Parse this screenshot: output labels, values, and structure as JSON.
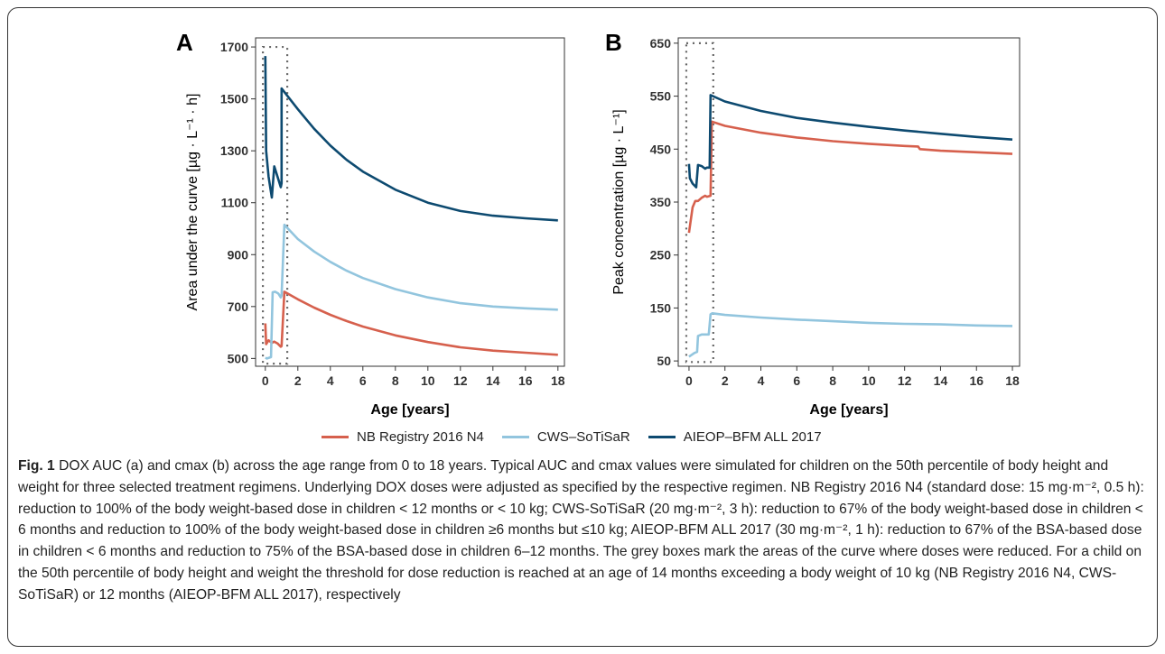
{
  "chart_data": [
    {
      "type": "line",
      "panel_label": "A",
      "xlabel": "Age [years]",
      "ylabel": "Area under the curve [µg · L⁻¹ · h]",
      "xlim": [
        -0.6,
        18.4
      ],
      "ylim": [
        470,
        1735
      ],
      "xticks": [
        0,
        2,
        4,
        6,
        8,
        10,
        12,
        14,
        16,
        18
      ],
      "yticks": [
        500,
        700,
        900,
        1100,
        1300,
        1500,
        1700
      ],
      "highlight_box": {
        "x": [
          -0.15,
          1.35
        ],
        "y": [
          480,
          1700
        ]
      },
      "series": [
        {
          "name": "NB Registry 2016 N4",
          "color": "#d6604d",
          "points": [
            [
              0,
              635
            ],
            [
              0.05,
              555
            ],
            [
              0.2,
              570
            ],
            [
              0.4,
              560
            ],
            [
              0.55,
              565
            ],
            [
              0.75,
              558
            ],
            [
              0.95,
              545
            ],
            [
              1.0,
              548
            ],
            [
              1.17,
              757
            ],
            [
              2,
              728
            ],
            [
              3,
              696
            ],
            [
              4,
              668
            ],
            [
              5,
              644
            ],
            [
              6,
              623
            ],
            [
              8,
              589
            ],
            [
              10,
              563
            ],
            [
              12,
              543
            ],
            [
              14,
              530
            ],
            [
              16,
              522
            ],
            [
              18,
              514
            ]
          ]
        },
        {
          "name": "CWS–SoTiSaR",
          "color": "#92c5de",
          "points": [
            [
              0,
              503
            ],
            [
              0.1,
              500
            ],
            [
              0.35,
              505
            ],
            [
              0.45,
              755
            ],
            [
              0.6,
              757
            ],
            [
              0.8,
              750
            ],
            [
              0.95,
              735
            ],
            [
              1.0,
              742
            ],
            [
              1.17,
              1015
            ],
            [
              2,
              960
            ],
            [
              3,
              912
            ],
            [
              4,
              872
            ],
            [
              5,
              838
            ],
            [
              6,
              810
            ],
            [
              8,
              767
            ],
            [
              10,
              735
            ],
            [
              12,
              713
            ],
            [
              14,
              700
            ],
            [
              16,
              693
            ],
            [
              18,
              688
            ]
          ]
        },
        {
          "name": "AIEOP–BFM ALL 2017",
          "color": "#0d4a70",
          "points": [
            [
              0,
              1665
            ],
            [
              0.05,
              1300
            ],
            [
              0.2,
              1200
            ],
            [
              0.4,
              1120
            ],
            [
              0.55,
              1240
            ],
            [
              0.75,
              1200
            ],
            [
              0.95,
              1160
            ],
            [
              1.0,
              1175
            ],
            [
              1.0,
              1540
            ],
            [
              1.5,
              1500
            ],
            [
              2,
              1460
            ],
            [
              3,
              1385
            ],
            [
              4,
              1320
            ],
            [
              5,
              1265
            ],
            [
              6,
              1220
            ],
            [
              8,
              1150
            ],
            [
              10,
              1100
            ],
            [
              12,
              1068
            ],
            [
              14,
              1050
            ],
            [
              16,
              1040
            ],
            [
              18,
              1032
            ]
          ]
        }
      ]
    },
    {
      "type": "line",
      "panel_label": "B",
      "xlabel": "Age [years]",
      "ylabel": "Peak concentration [µg · L⁻¹]",
      "xlim": [
        -0.6,
        18.4
      ],
      "ylim": [
        40,
        660
      ],
      "xticks": [
        0,
        2,
        4,
        6,
        8,
        10,
        12,
        14,
        16,
        18
      ],
      "yticks": [
        50,
        150,
        250,
        350,
        450,
        550,
        650
      ],
      "highlight_box": {
        "x": [
          -0.15,
          1.35
        ],
        "y": [
          48,
          650
        ]
      },
      "series": [
        {
          "name": "NB Registry 2016 N4",
          "color": "#d6604d",
          "points": [
            [
              0,
              292
            ],
            [
              0.2,
              340
            ],
            [
              0.35,
              352
            ],
            [
              0.5,
              352
            ],
            [
              0.7,
              358
            ],
            [
              0.9,
              362
            ],
            [
              1.0,
              360
            ],
            [
              1.2,
              362
            ],
            [
              1.27,
              502
            ],
            [
              2,
              494
            ],
            [
              4,
              481
            ],
            [
              6,
              472
            ],
            [
              8,
              465
            ],
            [
              10,
              460
            ],
            [
              12,
              456
            ],
            [
              12.75,
              455
            ],
            [
              12.85,
              450
            ],
            [
              14,
              447
            ],
            [
              16,
              444
            ],
            [
              18,
              441
            ]
          ]
        },
        {
          "name": "CWS–SoTiSaR",
          "color": "#92c5de",
          "points": [
            [
              0,
              58
            ],
            [
              0.3,
              65
            ],
            [
              0.45,
              67
            ],
            [
              0.5,
              97
            ],
            [
              0.7,
              100
            ],
            [
              1.0,
              100
            ],
            [
              1.1,
              100
            ],
            [
              1.2,
              138
            ],
            [
              1.3,
              140
            ],
            [
              2,
              137
            ],
            [
              4,
              132
            ],
            [
              6,
              128
            ],
            [
              8,
              125
            ],
            [
              10,
              122
            ],
            [
              12,
              120
            ],
            [
              14,
              119
            ],
            [
              16,
              117
            ],
            [
              18,
              116
            ]
          ]
        },
        {
          "name": "AIEOP–BFM ALL 2017",
          "color": "#0d4a70",
          "points": [
            [
              0,
              422
            ],
            [
              0.05,
              395
            ],
            [
              0.2,
              385
            ],
            [
              0.4,
              378
            ],
            [
              0.5,
              420
            ],
            [
              0.7,
              418
            ],
            [
              0.9,
              413
            ],
            [
              1.0,
              415
            ],
            [
              1.15,
              415
            ],
            [
              1.2,
              552
            ],
            [
              2,
              540
            ],
            [
              4,
              522
            ],
            [
              6,
              509
            ],
            [
              8,
              500
            ],
            [
              10,
              492
            ],
            [
              12,
              485
            ],
            [
              14,
              479
            ],
            [
              16,
              473
            ],
            [
              18,
              468
            ]
          ]
        }
      ]
    }
  ],
  "legend": {
    "items": [
      {
        "label": "NB Registry 2016 N4",
        "color": "#d6604d"
      },
      {
        "label": "CWS–SoTiSaR",
        "color": "#92c5de"
      },
      {
        "label": "AIEOP–BFM ALL 2017",
        "color": "#0d4a70"
      }
    ]
  },
  "caption": {
    "fig_label": "Fig. 1",
    "text": " DOX AUC (a) and cmax (b) across the age range from 0 to 18 years. Typical AUC and cmax values were simulated for children on the 50th percentile of body height and weight for three selected treatment regimens. Underlying DOX doses were adjusted as specified by the respective regimen. NB Registry 2016 N4 (standard dose: 15 mg·m⁻², 0.5 h): reduction to 100% of the body weight-based dose in children < 12 months or < 10 kg; CWS-SoTiSaR (20 mg·m⁻², 3 h): reduction to 67% of the body weight-based dose in children < 6 months and reduction to 100% of the body weight-based dose in children ≥6 months but ≤10 kg; AIEOP-BFM ALL 2017 (30 mg·m⁻², 1 h): reduction to 67% of the BSA-based dose in children < 6 months and reduction to 75% of the BSA-based dose in children 6–12 months. The grey boxes mark the areas of the curve where doses were reduced. For a child on the 50th percentile of body height and weight the threshold for dose reduction is reached at an age of 14 months exceeding a body weight of 10 kg (NB Registry 2016 N4, CWS-SoTiSaR) or 12 months (AIEOP-BFM ALL 2017), respectively"
  }
}
